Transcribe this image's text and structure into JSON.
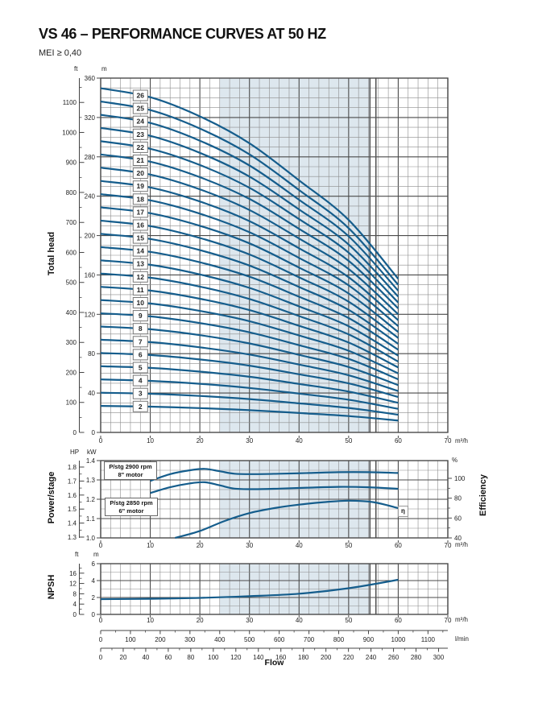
{
  "header": {
    "title": "VS 46 – PERFORMANCE CURVES AT 50 HZ",
    "subtitle": "MEI ≥ 0,40"
  },
  "axis_titles": {
    "total_head": "Total head",
    "power_stage": "Power/stage",
    "efficiency": "Efficiency",
    "npsh": "NPSH",
    "flow": "Flow"
  },
  "units": {
    "ft": "ft",
    "m": "m",
    "hp": "HP",
    "kw": "kW",
    "percent": "%",
    "m3h": "m³/h",
    "lmin": "l/min"
  },
  "annotations": {
    "motor_2900_line1": "P/stg 2900 rpm",
    "motor_2900_line2": "8\" motor",
    "motor_2850_line1": "P/stg 2850 rpm",
    "motor_2850_line2": "6\" motor",
    "eta": "η"
  },
  "colors": {
    "curve": "#155d8c",
    "duty_shade": "#dde7ee",
    "grid_minor": "#8c8c8c",
    "grid_major": "#4a4a4a",
    "limit_line": "#555555",
    "axis_text": "#222222"
  },
  "chart_data": [
    {
      "id": "total_head",
      "type": "line",
      "title": "Total head vs flow, stage curves 2–26",
      "x_unit": "m³/h",
      "xlim": [
        0,
        70
      ],
      "x_ticks": [
        0,
        10,
        20,
        30,
        40,
        50,
        60,
        70
      ],
      "x_minor_step": 2,
      "ylabel": "Total head",
      "y_unit": "m",
      "ylim": [
        0,
        360
      ],
      "y_ticks_m": [
        0,
        40,
        80,
        120,
        160,
        200,
        240,
        280,
        320,
        360
      ],
      "y_minor_step_m": 10,
      "y2_unit": "ft",
      "y2_ticks_ft": [
        0,
        100,
        200,
        300,
        400,
        500,
        600,
        700,
        800,
        900,
        1000,
        1100
      ],
      "grid": true,
      "stages": [
        2,
        3,
        4,
        5,
        6,
        7,
        8,
        9,
        10,
        11,
        12,
        13,
        14,
        15,
        16,
        17,
        18,
        19,
        20,
        21,
        22,
        23,
        24,
        25,
        26
      ],
      "per_stage_curve": {
        "flow_m3h": [
          0,
          10,
          20,
          30,
          40,
          50,
          60
        ],
        "head_m_per_stage": [
          13.45,
          13.1,
          12.35,
          11.3,
          9.85,
          8.3,
          6.0
        ]
      },
      "stage_label_flow_m3h": 8,
      "duty_range_m3h": [
        24,
        54.3
      ],
      "limit_lines_m3h": [
        54.3,
        55.5
      ]
    },
    {
      "id": "power_efficiency",
      "type": "line",
      "title": "Power per stage and efficiency vs flow",
      "x_unit": "m³/h",
      "xlim": [
        0,
        70
      ],
      "x_ticks": [
        0,
        10,
        20,
        30,
        40,
        50,
        60,
        70
      ],
      "x_minor_step": 2,
      "ylabel": "Power/stage",
      "y_unit": "kW",
      "ylim": [
        1.0,
        1.4
      ],
      "y_ticks_kw": [
        1.0,
        1.1,
        1.2,
        1.3,
        1.4
      ],
      "y_minor_step_kw": 0.05,
      "y2_unit": "HP",
      "y2_ticks_hp": [
        1.3,
        1.4,
        1.5,
        1.6,
        1.7,
        1.8
      ],
      "y3_unit": "%",
      "y3lim": [
        40,
        100
      ],
      "y3_ticks_pct": [
        40,
        60,
        80,
        100
      ],
      "series": [
        {
          "name": "P/stg 2900 rpm 8\" motor",
          "unit": "kW",
          "x": [
            10,
            14,
            18,
            21,
            24,
            27,
            31,
            36,
            42,
            48,
            54,
            60
          ],
          "values": [
            1.295,
            1.33,
            1.35,
            1.357,
            1.345,
            1.332,
            1.33,
            1.332,
            1.336,
            1.34,
            1.34,
            1.336
          ]
        },
        {
          "name": "P/stg 2850 rpm 6\" motor",
          "unit": "kW",
          "x": [
            10,
            14,
            18,
            21,
            24,
            27,
            31,
            36,
            42,
            48,
            54,
            60
          ],
          "values": [
            1.232,
            1.262,
            1.282,
            1.288,
            1.272,
            1.255,
            1.252,
            1.255,
            1.26,
            1.264,
            1.262,
            1.254
          ]
        },
        {
          "name": "η",
          "unit": "%",
          "x": [
            15,
            20,
            25,
            30,
            35,
            40,
            45,
            50,
            55,
            60
          ],
          "values": [
            40,
            47,
            57,
            65,
            70,
            73.5,
            76,
            77.5,
            76,
            70
          ]
        }
      ],
      "duty_range_m3h": [
        24,
        54.3
      ],
      "limit_lines_m3h": [
        54.3,
        55.5
      ]
    },
    {
      "id": "npsh",
      "type": "line",
      "title": "NPSH vs flow",
      "x_unit": "m³/h",
      "xlim": [
        0,
        70
      ],
      "x_ticks": [
        0,
        10,
        20,
        30,
        40,
        50,
        60,
        70
      ],
      "x_minor_step": 2,
      "ylabel": "NPSH",
      "y_unit": "m",
      "ylim": [
        0,
        6
      ],
      "y_ticks_m": [
        0,
        2,
        4,
        6
      ],
      "y_minor_step_m": 1,
      "y2_unit": "ft",
      "y2_ticks_ft": [
        0,
        4,
        8,
        12,
        16
      ],
      "series": [
        {
          "name": "NPSH",
          "unit": "m",
          "x": [
            0,
            10,
            20,
            30,
            40,
            50,
            60
          ],
          "values": [
            1.8,
            1.85,
            1.95,
            2.15,
            2.45,
            3.1,
            4.1
          ]
        }
      ],
      "duty_range_m3h": [
        24,
        54.3
      ],
      "limit_lines_m3h": [
        54.3,
        55.5
      ],
      "flow_axis_lmin": {
        "unit": "l/min",
        "ticks": [
          0,
          100,
          200,
          300,
          400,
          500,
          600,
          700,
          800,
          900,
          1000,
          1100
        ],
        "minor_step": 50
      },
      "flow_axis_gpm": {
        "ticks": [
          0,
          20,
          40,
          60,
          80,
          100,
          120,
          140,
          160,
          180,
          200,
          220,
          240,
          260,
          280,
          300
        ],
        "minor_step": 10
      }
    }
  ]
}
